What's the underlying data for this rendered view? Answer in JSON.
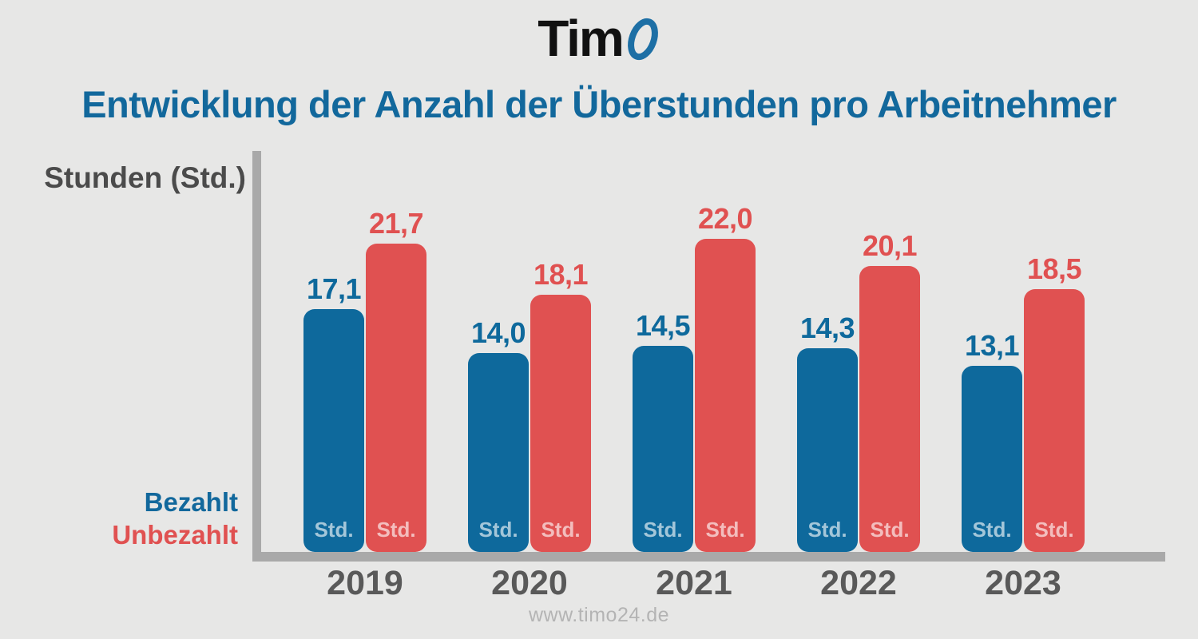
{
  "logo": {
    "text": "Tim",
    "o_glyph": "O",
    "o_color": "#1d6fa5",
    "text_color": "#111111"
  },
  "title": {
    "text": "Entwicklung der Anzahl der Überstunden pro Arbeitnehmer",
    "color": "#12689c"
  },
  "footer": {
    "url": "www.timo24.de"
  },
  "chart_data": {
    "type": "bar",
    "title": "Entwicklung der Anzahl der Überstunden pro Arbeitnehmer",
    "ylabel": "Stunden (Std.)",
    "xlabel": "",
    "categories": [
      "2019",
      "2020",
      "2021",
      "2022",
      "2023"
    ],
    "series": [
      {
        "name": "Bezahlt",
        "color": "#0e699c",
        "values": [
          17.1,
          14.0,
          14.5,
          14.3,
          13.1
        ],
        "labels": [
          "17,1",
          "14,0",
          "14,5",
          "14,3",
          "13,1"
        ]
      },
      {
        "name": "Unbezahlt",
        "color": "#e05151",
        "values": [
          21.7,
          18.1,
          22.0,
          20.1,
          18.5
        ],
        "labels": [
          "21,7",
          "18,1",
          "22,0",
          "20,1",
          "18,5"
        ]
      }
    ],
    "bar_unit_label": "Std.",
    "unit": "Stunden",
    "ylim": [
      0,
      24
    ],
    "grid": false,
    "legend_position": "bottom-left",
    "axis_color": "#a9a9a9"
  }
}
